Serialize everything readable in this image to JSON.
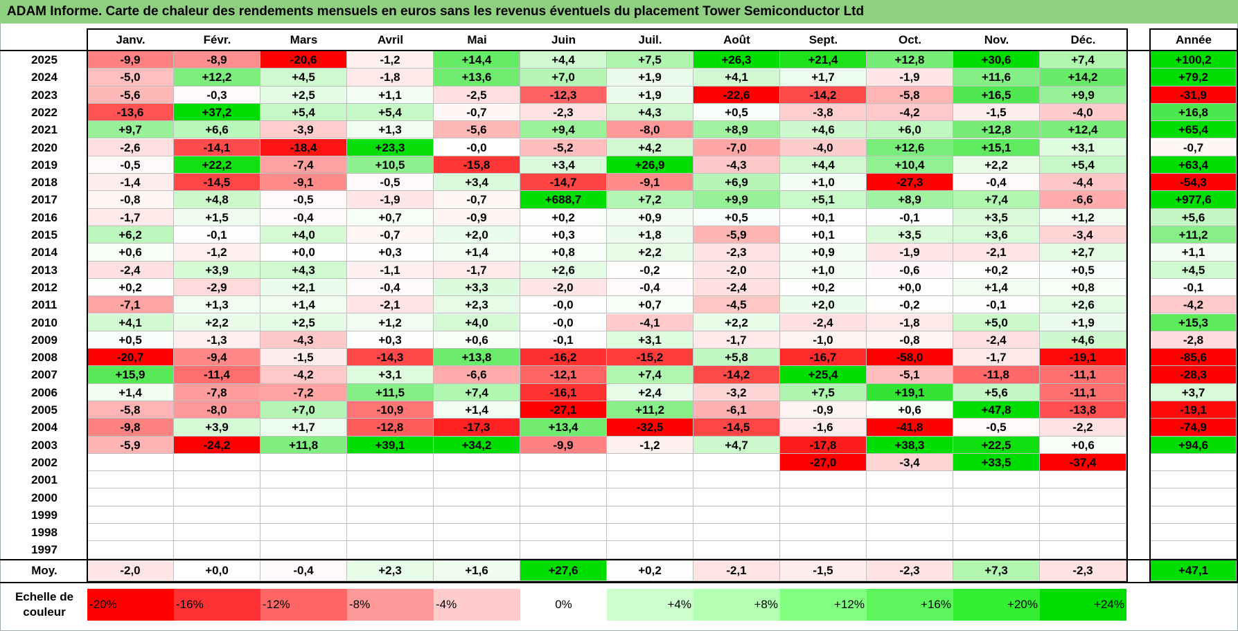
{
  "title": "ADAM Informe. Carte de chaleur des rendements mensuels en euros sans les revenus éventuels du placement Tower Semiconductor Ltd",
  "chart_data": {
    "type": "heatmap",
    "title": "ADAM Informe. Carte de chaleur des rendements mensuels en euros sans les revenus éventuels du placement Tower Semiconductor Ltd",
    "months": [
      "Janv.",
      "Févr.",
      "Mars",
      "Avril",
      "Mai",
      "Juin",
      "Juil.",
      "Août",
      "Sept.",
      "Oct.",
      "Nov.",
      "Déc."
    ],
    "year_header": "Année",
    "rows": [
      {
        "year": "2025",
        "values": [
          "-9,9",
          "-8,9",
          "-20,6",
          "-1,2",
          "+14,4",
          "+4,4",
          "+7,5",
          "+26,3",
          "+21,4",
          "+12,8",
          "+30,6",
          "+7,4"
        ],
        "annual": "+100,2"
      },
      {
        "year": "2024",
        "values": [
          "-5,0",
          "+12,2",
          "+4,5",
          "-1,8",
          "+13,6",
          "+7,0",
          "+1,9",
          "+4,1",
          "+1,7",
          "-1,9",
          "+11,6",
          "+14,2"
        ],
        "annual": "+79,2"
      },
      {
        "year": "2023",
        "values": [
          "-5,6",
          "-0,3",
          "+2,5",
          "+1,1",
          "-2,5",
          "-12,3",
          "+1,9",
          "-22,6",
          "-14,2",
          "-5,8",
          "+16,5",
          "+9,9"
        ],
        "annual": "-31,9"
      },
      {
        "year": "2022",
        "values": [
          "-13,6",
          "+37,2",
          "+5,4",
          "+5,4",
          "-0,7",
          "-2,3",
          "+4,3",
          "+0,5",
          "-3,8",
          "-4,2",
          "-1,5",
          "-4,0"
        ],
        "annual": "+16,8"
      },
      {
        "year": "2021",
        "values": [
          "+9,7",
          "+6,6",
          "-3,9",
          "+1,3",
          "-5,6",
          "+9,4",
          "-8,0",
          "+8,9",
          "+4,6",
          "+6,0",
          "+12,8",
          "+12,4"
        ],
        "annual": "+65,4"
      },
      {
        "year": "2020",
        "values": [
          "-2,6",
          "-14,1",
          "-18,4",
          "+23,3",
          "-0,0",
          "-5,2",
          "+4,2",
          "-7,0",
          "-4,0",
          "+12,6",
          "+15,1",
          "+3,1"
        ],
        "annual": "-0,7"
      },
      {
        "year": "2019",
        "values": [
          "-0,5",
          "+22,2",
          "-7,4",
          "+10,5",
          "-15,8",
          "+3,4",
          "+26,9",
          "-4,3",
          "+4,4",
          "+10,4",
          "+2,2",
          "+5,4"
        ],
        "annual": "+63,4"
      },
      {
        "year": "2018",
        "values": [
          "-1,4",
          "-14,5",
          "-9,1",
          "-0,5",
          "+3,4",
          "-14,7",
          "-9,1",
          "+6,9",
          "+1,0",
          "-27,3",
          "-0,4",
          "-4,4"
        ],
        "annual": "-54,3"
      },
      {
        "year": "2017",
        "values": [
          "-0,8",
          "+4,8",
          "-0,5",
          "-1,9",
          "-0,7",
          "+688,7",
          "+7,2",
          "+9,9",
          "+5,1",
          "+8,9",
          "+7,4",
          "-6,6"
        ],
        "annual": "+977,6"
      },
      {
        "year": "2016",
        "values": [
          "-1,7",
          "+1,5",
          "-0,4",
          "+0,7",
          "-0,9",
          "+0,2",
          "+0,9",
          "+0,5",
          "+0,1",
          "-0,1",
          "+3,5",
          "+1,2"
        ],
        "annual": "+5,6"
      },
      {
        "year": "2015",
        "values": [
          "+6,2",
          "-0,1",
          "+4,0",
          "-0,7",
          "+2,0",
          "+0,3",
          "+1,8",
          "-5,9",
          "+0,1",
          "+3,5",
          "+3,6",
          "-3,4"
        ],
        "annual": "+11,2"
      },
      {
        "year": "2014",
        "values": [
          "+0,6",
          "-1,2",
          "+0,0",
          "+0,3",
          "+1,4",
          "+0,8",
          "+2,2",
          "-2,3",
          "+0,9",
          "-1,9",
          "-2,1",
          "+2,7"
        ],
        "annual": "+1,1"
      },
      {
        "year": "2013",
        "values": [
          "-2,4",
          "+3,9",
          "+4,3",
          "-1,1",
          "-1,7",
          "+2,6",
          "-0,2",
          "-2,0",
          "+1,0",
          "-0,6",
          "+0,2",
          "+0,5"
        ],
        "annual": "+4,5"
      },
      {
        "year": "2012",
        "values": [
          "+0,2",
          "-2,9",
          "+2,1",
          "-0,4",
          "+3,3",
          "-2,0",
          "-0,4",
          "-2,4",
          "+0,2",
          "+0,0",
          "+1,4",
          "+0,8"
        ],
        "annual": "-0,1"
      },
      {
        "year": "2011",
        "values": [
          "-7,1",
          "+1,3",
          "+1,4",
          "-2,1",
          "+2,3",
          "-0,0",
          "+0,7",
          "-4,5",
          "+2,0",
          "-0,2",
          "-0,1",
          "+2,6"
        ],
        "annual": "-4,2"
      },
      {
        "year": "2010",
        "values": [
          "+4,1",
          "+2,2",
          "+2,5",
          "+1,2",
          "+4,0",
          "-0,0",
          "-4,1",
          "+2,2",
          "-2,4",
          "-1,8",
          "+5,0",
          "+1,9"
        ],
        "annual": "+15,3"
      },
      {
        "year": "2009",
        "values": [
          "+0,5",
          "-1,3",
          "-4,3",
          "+0,3",
          "+0,6",
          "-0,1",
          "+3,1",
          "-1,7",
          "-1,0",
          "-0,8",
          "-2,4",
          "+4,6"
        ],
        "annual": "-2,8"
      },
      {
        "year": "2008",
        "values": [
          "-20,7",
          "-9,4",
          "-1,5",
          "-14,3",
          "+13,8",
          "-16,2",
          "-15,2",
          "+5,8",
          "-16,7",
          "-58,0",
          "-1,7",
          "-19,1"
        ],
        "annual": "-85,6"
      },
      {
        "year": "2007",
        "values": [
          "+15,9",
          "-11,4",
          "-4,2",
          "+3,1",
          "-6,6",
          "-12,1",
          "+7,4",
          "-14,2",
          "+25,4",
          "-5,1",
          "-11,8",
          "-11,1"
        ],
        "annual": "-28,3"
      },
      {
        "year": "2006",
        "values": [
          "+1,4",
          "-7,8",
          "-7,2",
          "+11,5",
          "+7,4",
          "-16,1",
          "+2,4",
          "-3,2",
          "+7,5",
          "+19,1",
          "+5,6",
          "-11,1"
        ],
        "annual": "+3,7"
      },
      {
        "year": "2005",
        "values": [
          "-5,8",
          "-8,0",
          "+7,0",
          "-10,9",
          "+1,4",
          "-27,1",
          "+11,2",
          "-6,1",
          "-0,9",
          "+0,6",
          "+47,8",
          "-13,8"
        ],
        "annual": "-19,1"
      },
      {
        "year": "2004",
        "values": [
          "-9,8",
          "+3,9",
          "+1,7",
          "-12,8",
          "-17,3",
          "+13,4",
          "-32,5",
          "-14,5",
          "-1,6",
          "-41,8",
          "-0,5",
          "-2,2"
        ],
        "annual": "-74,9"
      },
      {
        "year": "2003",
        "values": [
          "-5,9",
          "-24,2",
          "+11,8",
          "+39,1",
          "+34,2",
          "-9,9",
          "-1,2",
          "+4,7",
          "-17,8",
          "+38,3",
          "+22,5",
          "+0,6"
        ],
        "annual": "+94,6"
      },
      {
        "year": "2002",
        "values": [
          "",
          "",
          "",
          "",
          "",
          "",
          "",
          "",
          "-27,0",
          "-3,4",
          "+33,5",
          "-37,4"
        ],
        "annual": ""
      },
      {
        "year": "2001",
        "values": [
          "",
          "",
          "",
          "",
          "",
          "",
          "",
          "",
          "",
          "",
          "",
          ""
        ],
        "annual": ""
      },
      {
        "year": "2000",
        "values": [
          "",
          "",
          "",
          "",
          "",
          "",
          "",
          "",
          "",
          "",
          "",
          ""
        ],
        "annual": ""
      },
      {
        "year": "1999",
        "values": [
          "",
          "",
          "",
          "",
          "",
          "",
          "",
          "",
          "",
          "",
          "",
          ""
        ],
        "annual": ""
      },
      {
        "year": "1998",
        "values": [
          "",
          "",
          "",
          "",
          "",
          "",
          "",
          "",
          "",
          "",
          "",
          ""
        ],
        "annual": ""
      },
      {
        "year": "1997",
        "values": [
          "",
          "",
          "",
          "",
          "",
          "",
          "",
          "",
          "",
          "",
          "",
          ""
        ],
        "annual": ""
      }
    ],
    "average": {
      "label": "Moy.",
      "values": [
        "-2,0",
        "+0,0",
        "-0,4",
        "+2,3",
        "+1,6",
        "+27,6",
        "+0,2",
        "-2,1",
        "-1,5",
        "-2,3",
        "+7,3",
        "-2,3"
      ],
      "annual": "+47,1"
    },
    "scale": {
      "label_line1": "Echelle de",
      "label_line2": "couleur",
      "stops": [
        {
          "label": "-20%",
          "color": "#ff0000"
        },
        {
          "label": "-16%",
          "color": "#ff3333"
        },
        {
          "label": "-12%",
          "color": "#ff6666"
        },
        {
          "label": "-8%",
          "color": "#ff9999"
        },
        {
          "label": "-4%",
          "color": "#ffcccc"
        },
        {
          "label": "0%",
          "color": "#ffffff"
        },
        {
          "label": "+4%",
          "color": "#ccffcc"
        },
        {
          "label": "+8%",
          "color": "#b3ffb3"
        },
        {
          "label": "+12%",
          "color": "#80ff80"
        },
        {
          "label": "+16%",
          "color": "#5cf55c"
        },
        {
          "label": "+20%",
          "color": "#33ee33"
        },
        {
          "label": "+24%",
          "color": "#00dd00"
        }
      ]
    },
    "colors": {
      "negative_max": "#ff0000",
      "neutral": "#ffffff",
      "positive_max": "#00dd00",
      "title_bar": "#8fcf80"
    }
  }
}
